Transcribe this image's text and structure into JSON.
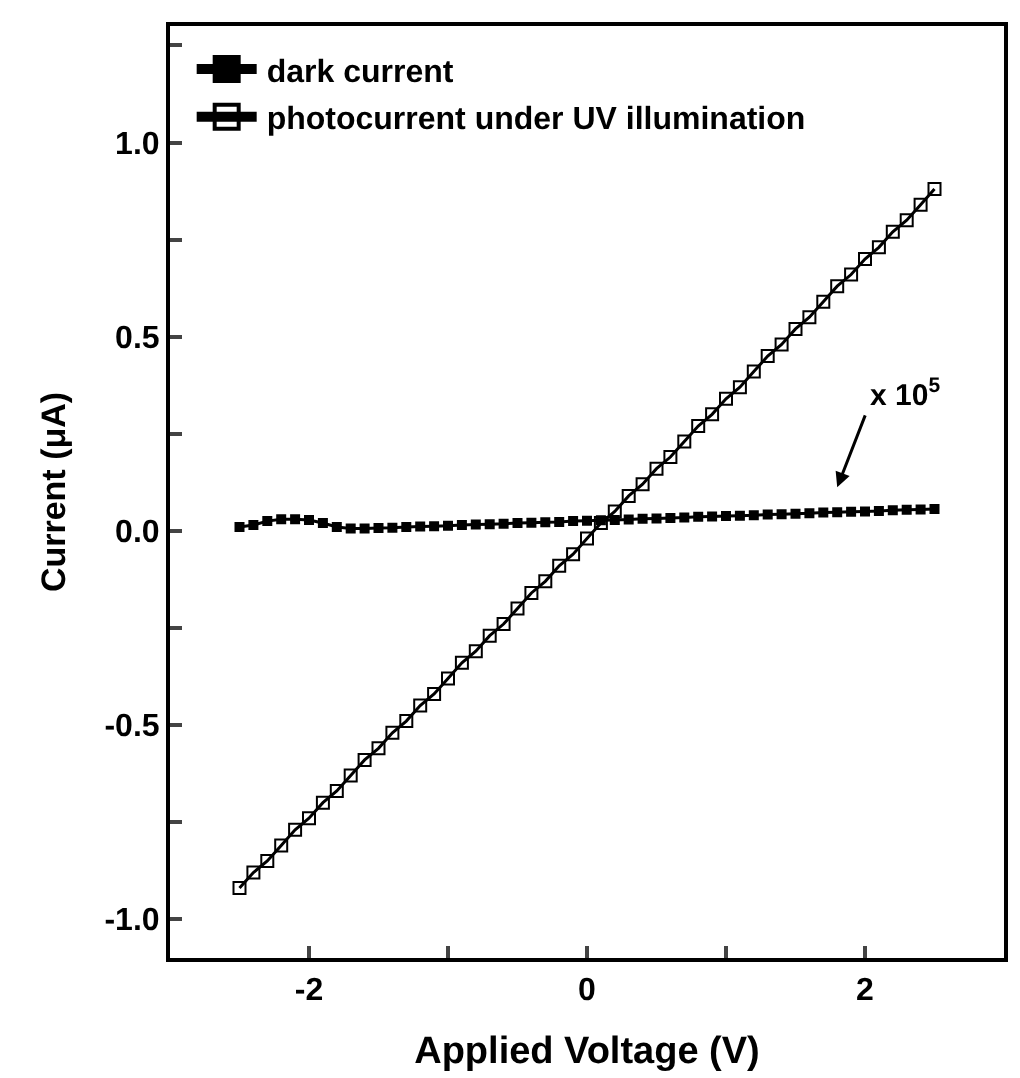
{
  "chart_data": {
    "type": "line",
    "xlabel": "Applied Voltage (V)",
    "ylabel": "Current (μA)",
    "xlim": [
      -3,
      3
    ],
    "ylim": [
      -1.1,
      1.3
    ],
    "xticks": [
      -2,
      {
        "value": -1,
        "label": null
      },
      0,
      {
        "value": 1,
        "label": null
      },
      2
    ],
    "yticks": [
      {
        "value": -1,
        "label": "-1.0"
      },
      {
        "value": -0.75,
        "label": null
      },
      -0.5,
      {
        "value": -0.25,
        "label": null
      },
      {
        "value": 0,
        "label": "0.0"
      },
      {
        "value": 0.25,
        "label": null
      },
      0.5,
      {
        "value": 0.75,
        "label": null
      },
      {
        "value": 1,
        "label": "1.0"
      },
      {
        "value": 1.25,
        "label": null
      }
    ],
    "x": [
      -2.5,
      -2.4,
      -2.3,
      -2.2,
      -2.1,
      -2.0,
      -1.9,
      -1.8,
      -1.7,
      -1.6,
      -1.5,
      -1.4,
      -1.3,
      -1.2,
      -1.1,
      -1.0,
      -0.9,
      -0.8,
      -0.7,
      -0.6,
      -0.5,
      -0.4,
      -0.3,
      -0.2,
      -0.1,
      0.0,
      0.1,
      0.2,
      0.3,
      0.4,
      0.5,
      0.6,
      0.7,
      0.8,
      0.9,
      1.0,
      1.1,
      1.2,
      1.3,
      1.4,
      1.5,
      1.6,
      1.7,
      1.8,
      1.9,
      2.0,
      2.1,
      2.2,
      2.3,
      2.4,
      2.5
    ],
    "series": [
      {
        "name": "dark current",
        "color": "#000000",
        "marker": "square",
        "values": [
          0.01,
          0.015,
          0.025,
          0.03,
          0.03,
          0.028,
          0.02,
          0.01,
          0.006,
          0.006,
          0.007,
          0.008,
          0.01,
          0.011,
          0.012,
          0.013,
          0.015,
          0.016,
          0.017,
          0.018,
          0.02,
          0.021,
          0.022,
          0.023,
          0.025,
          0.026,
          0.027,
          0.028,
          0.029,
          0.031,
          0.032,
          0.033,
          0.034,
          0.036,
          0.037,
          0.038,
          0.039,
          0.04,
          0.042,
          0.043,
          0.044,
          0.045,
          0.047,
          0.048,
          0.049,
          0.05,
          0.051,
          0.053,
          0.054,
          0.055,
          0.056
        ]
      },
      {
        "name": "photocurrent under UV illumination",
        "color": "#000000",
        "marker": "square-open",
        "values": [
          -0.92,
          -0.88,
          -0.85,
          -0.81,
          -0.77,
          -0.74,
          -0.7,
          -0.67,
          -0.63,
          -0.59,
          -0.56,
          -0.52,
          -0.49,
          -0.45,
          -0.42,
          -0.38,
          -0.34,
          -0.31,
          -0.27,
          -0.24,
          -0.2,
          -0.16,
          -0.13,
          -0.09,
          -0.06,
          -0.02,
          0.02,
          0.05,
          0.09,
          0.12,
          0.16,
          0.19,
          0.23,
          0.27,
          0.3,
          0.34,
          0.37,
          0.41,
          0.45,
          0.48,
          0.52,
          0.55,
          0.59,
          0.63,
          0.66,
          0.7,
          0.73,
          0.77,
          0.8,
          0.84,
          0.88
        ]
      }
    ],
    "annotations": [
      "x 10$^{5}$"
    ],
    "legend": "top left"
  }
}
